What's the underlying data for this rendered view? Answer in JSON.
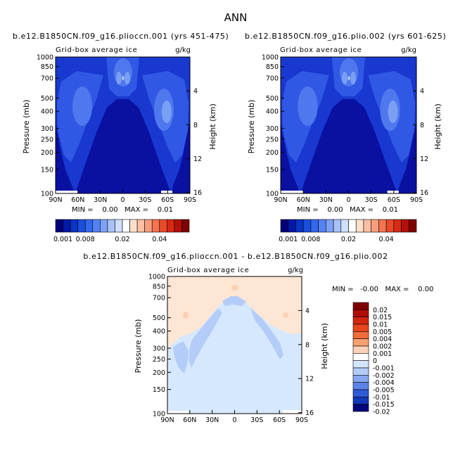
{
  "figure_title": "ANN",
  "chart_data": [
    {
      "type": "heatmap",
      "title": "b.e12.B1850CN.f09_g16.plioccn.001 (yrs 451-475)",
      "subtitle_left": "Grid-box average ice",
      "subtitle_right": "g/kg",
      "ylabel": "Pressure (mb)",
      "ylabel_right": "Height (km)",
      "x_ticks": [
        "90N",
        "60N",
        "30N",
        "0",
        "30S",
        "60S",
        "90S"
      ],
      "xlim": [
        90,
        -90
      ],
      "y_ticks": [
        "100",
        "150",
        "200",
        "250",
        "300",
        "400",
        "500",
        "700",
        "850",
        "1000"
      ],
      "y_ticks_right": [
        "16",
        "12",
        "8",
        "4"
      ],
      "ylim": [
        1000,
        100
      ],
      "stats": "MIN =    0.00   MAX =    0.01",
      "colorbar_labels": [
        "0.001",
        "0.008",
        "0.02",
        "0.04"
      ]
    },
    {
      "type": "heatmap",
      "title": "b.e12.B1850CN.f09_g16.plio.002 (yrs 601-625)",
      "subtitle_left": "Grid-box average ice",
      "subtitle_right": "g/kg",
      "ylabel": "Pressure (mb)",
      "ylabel_right": "Height (km)",
      "x_ticks": [
        "90N",
        "60N",
        "30N",
        "0",
        "30S",
        "60S",
        "90S"
      ],
      "xlim": [
        90,
        -90
      ],
      "y_ticks": [
        "100",
        "150",
        "200",
        "250",
        "300",
        "400",
        "500",
        "700",
        "850",
        "1000"
      ],
      "y_ticks_right": [
        "16",
        "12",
        "8",
        "4"
      ],
      "ylim": [
        1000,
        100
      ],
      "stats": "MIN =    0.00   MAX =    0.01",
      "colorbar_labels": [
        "0.001",
        "0.008",
        "0.02",
        "0.04"
      ]
    },
    {
      "type": "heatmap",
      "title": "b.e12.B1850CN.f09_g16.plioccn.001 - b.e12.B1850CN.f09_g16.plio.002",
      "subtitle_left": "Grid-box average ice",
      "subtitle_right": "g/kg",
      "ylabel": "Pressure (mb)",
      "ylabel_right": "Height (km)",
      "x_ticks": [
        "90N",
        "60N",
        "30N",
        "0",
        "30S",
        "60S",
        "90S"
      ],
      "xlim": [
        90,
        -90
      ],
      "y_ticks": [
        "100",
        "150",
        "200",
        "250",
        "300",
        "400",
        "500",
        "700",
        "850",
        "1000"
      ],
      "y_ticks_right": [
        "16",
        "12",
        "8",
        "4"
      ],
      "ylim": [
        1000,
        100
      ],
      "stats": "MIN =   -0.00   MAX =    0.00",
      "colorbar_labels": [
        "0.02",
        "0.015",
        "0.01",
        "0.005",
        "0.004",
        "0.002",
        "0.001",
        "0",
        "-0.001",
        "-0.002",
        "-0.004",
        "-0.005",
        "-0.01",
        "-0.015",
        "-0.02"
      ]
    }
  ],
  "colors": {
    "abs_scale": [
      "#00007a",
      "#0018a8",
      "#0a34c8",
      "#1a4fde",
      "#3468ec",
      "#5582f2",
      "#7ea2f6",
      "#a8c2f8",
      "#d0e0fb",
      "#ffffff",
      "#fde0cc",
      "#fbc0a2",
      "#f89e7c",
      "#f27450",
      "#e84a2a",
      "#d62a14",
      "#b4100a",
      "#800000"
    ],
    "diff_scale": [
      "#800000",
      "#b00d08",
      "#d42410",
      "#e8441e",
      "#f06c3a",
      "#f7a070",
      "#fbd2b8",
      "#ffffff",
      "#d4e6fd",
      "#b4ccf8",
      "#86a8f2",
      "#5a82e8",
      "#2f5ad8",
      "#1238b8",
      "#00067c"
    ],
    "abs_base": "#0a10a0",
    "abs_l2": "#1838d0",
    "abs_l3": "#3058e4",
    "abs_l4": "#5078ee",
    "abs_l5": "#7aa0f4",
    "abs_l6": "#b4d0f8",
    "diff_base": "#fde6d4",
    "diff_neg1": "#d6e8fd",
    "diff_neg2": "#b4ccf8",
    "diff_pos": "#fbd0b4"
  }
}
